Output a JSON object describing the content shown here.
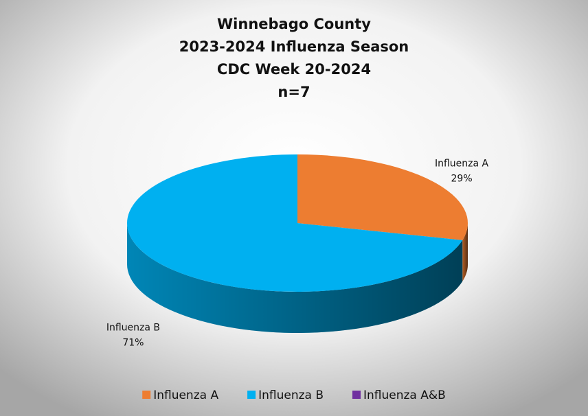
{
  "chart_data": {
    "type": "pie",
    "title": [
      "Winnebago County",
      "2023-2024 Influenza Season",
      "CDC Week 20-2024",
      "n=7"
    ],
    "categories": [
      "Influenza A",
      "Influenza B",
      "Influenza A&B"
    ],
    "values": [
      29,
      71,
      0
    ],
    "value_labels": [
      "29%",
      "71%",
      null
    ],
    "colors": [
      "#ED7D31",
      "#00B0F0",
      "#7030A0"
    ],
    "legend": "bottom"
  }
}
